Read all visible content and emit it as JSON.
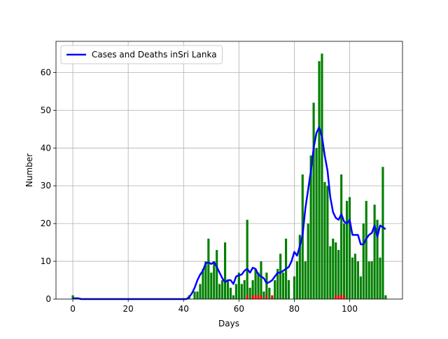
{
  "chart_data": {
    "type": "bar",
    "xlabel": "Days",
    "ylabel": "Number",
    "x": [
      0,
      1,
      2,
      3,
      4,
      5,
      6,
      7,
      8,
      9,
      10,
      11,
      12,
      13,
      14,
      15,
      16,
      17,
      18,
      19,
      20,
      21,
      22,
      23,
      24,
      25,
      26,
      27,
      28,
      29,
      30,
      31,
      32,
      33,
      34,
      35,
      36,
      37,
      38,
      39,
      40,
      41,
      42,
      43,
      44,
      45,
      46,
      47,
      48,
      49,
      50,
      51,
      52,
      53,
      54,
      55,
      56,
      57,
      58,
      59,
      60,
      61,
      62,
      63,
      64,
      65,
      66,
      67,
      68,
      69,
      70,
      71,
      72,
      73,
      74,
      75,
      76,
      77,
      78,
      79,
      80,
      81,
      82,
      83,
      84,
      85,
      86,
      87,
      88,
      89,
      90,
      91,
      92,
      93,
      94,
      95,
      96,
      97,
      98,
      99,
      100,
      101,
      102,
      103,
      104,
      105,
      106,
      107,
      108,
      109,
      110,
      111,
      112,
      113
    ],
    "bar_series": [
      {
        "color": "#008000",
        "values": [
          1,
          0,
          0,
          0,
          0,
          0,
          0,
          0,
          0,
          0,
          0,
          0,
          0,
          0,
          0,
          0,
          0,
          0,
          0,
          0,
          0,
          0,
          0,
          0,
          0,
          0,
          0,
          0,
          0,
          0,
          0,
          0,
          0,
          0,
          0,
          0,
          0,
          0,
          0,
          0,
          0,
          0,
          1,
          0,
          2,
          2,
          4,
          8,
          10,
          16,
          7,
          10,
          13,
          4,
          5,
          15,
          5,
          3,
          1,
          4,
          7,
          4,
          5,
          21,
          3,
          5,
          8,
          7,
          10,
          2,
          7,
          3,
          0,
          5,
          8,
          12,
          7,
          16,
          5,
          0,
          6,
          10,
          17,
          33,
          10,
          20,
          38,
          52,
          40,
          63,
          65,
          31,
          30,
          14,
          16,
          15,
          13,
          33,
          20,
          26,
          27,
          11,
          12,
          10,
          6,
          20,
          26,
          10,
          10,
          25,
          21,
          11,
          35,
          1
        ]
      },
      {
        "color": "#ff0000",
        "values": [
          0,
          0,
          0,
          0,
          0,
          0,
          0,
          0,
          0,
          0,
          0,
          0,
          0,
          0,
          0,
          0,
          0,
          0,
          0,
          0,
          0,
          0,
          0,
          0,
          0,
          0,
          0,
          0,
          0,
          0,
          0,
          0,
          0,
          0,
          0,
          0,
          0,
          0,
          0,
          0,
          0,
          0,
          0,
          0,
          0,
          0,
          0,
          0,
          0,
          0,
          0,
          0,
          0,
          0,
          0,
          0,
          0,
          0,
          0,
          0,
          0,
          0,
          0,
          1,
          0,
          1,
          1,
          1,
          1,
          0,
          1,
          0,
          1,
          0,
          0,
          0,
          0,
          0,
          0,
          0,
          0,
          0,
          0,
          0,
          0,
          0,
          0,
          0,
          0,
          0,
          0,
          0,
          0,
          0,
          0,
          1,
          1,
          1,
          1,
          0,
          0,
          0,
          0,
          0,
          0,
          0,
          0,
          0,
          0,
          0,
          0,
          0,
          0,
          0
        ]
      }
    ],
    "series": [
      {
        "name": "Cases and Deaths inSri Lanka",
        "color": "#0000ff",
        "values": [
          0.2,
          0.2,
          0.2,
          0,
          0,
          0,
          0,
          0,
          0,
          0,
          0,
          0,
          0,
          0,
          0,
          0,
          0,
          0,
          0,
          0,
          0,
          0,
          0,
          0,
          0,
          0,
          0,
          0,
          0,
          0,
          0,
          0,
          0,
          0,
          0,
          0,
          0,
          0,
          0,
          0,
          0,
          0,
          0.5,
          1.5,
          3,
          5,
          6.5,
          7.5,
          9.5,
          9.7,
          9.3,
          9.8,
          8.5,
          7,
          5.5,
          4.5,
          5,
          5,
          4,
          6,
          6.3,
          6.5,
          7.5,
          8,
          7,
          8.3,
          8,
          6.5,
          6,
          5.5,
          4.2,
          4.5,
          5,
          6,
          7,
          7,
          7.5,
          8,
          8.5,
          10,
          12.5,
          11.5,
          14,
          17,
          24,
          29,
          34,
          40,
          44,
          45.5,
          43,
          38,
          34,
          27,
          23,
          21.5,
          21,
          22.5,
          20.5,
          20,
          21,
          17,
          17,
          17,
          14.5,
          14.5,
          16,
          17,
          17.5,
          19.5,
          16.5,
          19.5,
          19,
          18.5
        ]
      }
    ],
    "xlim": [
      -6.09,
      119.09
    ],
    "xticks": [
      0,
      20,
      40,
      60,
      80,
      100
    ],
    "ylim": [
      0,
      68.25
    ],
    "yticks": [
      0,
      10,
      20,
      30,
      40,
      50,
      60
    ],
    "grid": true,
    "legend": "upper left"
  }
}
